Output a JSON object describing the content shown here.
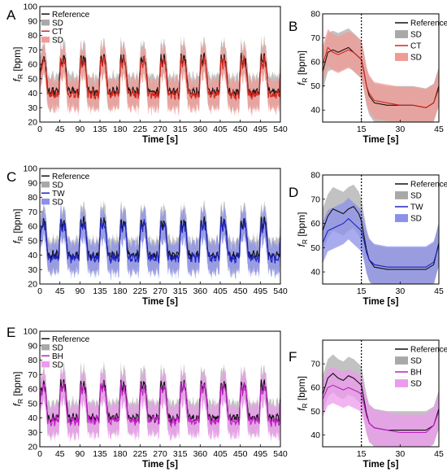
{
  "figure": {
    "background": "#ffffff"
  },
  "chart_data": [
    {
      "panel": "A",
      "type": "line",
      "xlabel": "Time [s]",
      "ylabel_main": "f",
      "ylabel_sub": "R",
      "ylabel_unit": " [bpm]",
      "xlim": [
        0,
        540
      ],
      "ylim": [
        20,
        100
      ],
      "xticks": [
        0,
        45,
        90,
        135,
        180,
        225,
        270,
        315,
        360,
        405,
        450,
        495,
        540
      ],
      "yticks": [
        20,
        30,
        40,
        50,
        60,
        70,
        80,
        90,
        100
      ],
      "kind": "full",
      "series_color": "#d4251c",
      "band_color": "#f29a94",
      "legend": [
        "Reference",
        "SD",
        "CT",
        "SD"
      ],
      "legend_placement": "top-left",
      "reference_pattern": {
        "cycle_s": 45,
        "high_bpm": 63,
        "low_bpm": 41,
        "cycles": 12
      }
    },
    {
      "panel": "B",
      "type": "line",
      "xlabel": "Time [s]",
      "ylabel_main": "f",
      "ylabel_sub": "R",
      "ylabel_unit": " [bpm]",
      "xlim": [
        0,
        45
      ],
      "ylim": [
        35,
        80
      ],
      "xticks": [
        15,
        30,
        45
      ],
      "yticks": [
        40,
        50,
        60,
        70,
        80
      ],
      "kind": "avg",
      "vline_x": 15,
      "series_color": "#d4251c",
      "band_color": "#f29a94",
      "legend": [
        "Reference",
        "SD",
        "CT",
        "SD"
      ],
      "legend_placement": "top-right",
      "reference_x": [
        0,
        2,
        4,
        6,
        8,
        10,
        12,
        14,
        15,
        16,
        17,
        18,
        20,
        25,
        30,
        35,
        40,
        43,
        45
      ],
      "reference_y": [
        56,
        64,
        65,
        64,
        65,
        66,
        64,
        62,
        61,
        56,
        50,
        46,
        43,
        42,
        42,
        42,
        41,
        43,
        50
      ],
      "method_x": [
        0,
        2,
        4,
        6,
        8,
        10,
        12,
        14,
        15,
        16,
        17,
        18,
        20,
        25,
        30,
        35,
        40,
        43,
        45
      ],
      "method_y": [
        59,
        66,
        64,
        63,
        64,
        65,
        64,
        62,
        61,
        56,
        50,
        47,
        44,
        43,
        42,
        42,
        41,
        43,
        49
      ],
      "band_half_width": 8
    },
    {
      "panel": "C",
      "type": "line",
      "xlabel": "Time [s]",
      "ylabel_main": "f",
      "ylabel_sub": "R",
      "ylabel_unit": " [bpm]",
      "xlim": [
        0,
        540
      ],
      "ylim": [
        20,
        100
      ],
      "xticks": [
        0,
        45,
        90,
        135,
        180,
        225,
        270,
        315,
        360,
        405,
        450,
        495,
        540
      ],
      "yticks": [
        20,
        30,
        40,
        50,
        60,
        70,
        80,
        90,
        100
      ],
      "kind": "full",
      "series_color": "#1d22c4",
      "band_color": "#8b90ea",
      "legend": [
        "Reference",
        "SD",
        "TW",
        "SD"
      ],
      "legend_placement": "top-left",
      "reference_pattern": {
        "cycle_s": 45,
        "high_bpm": 62,
        "low_bpm": 40,
        "cycles": 12
      }
    },
    {
      "panel": "D",
      "type": "line",
      "xlabel": "Time [s]",
      "ylabel_main": "f",
      "ylabel_sub": "R",
      "ylabel_unit": " [bpm]",
      "xlim": [
        0,
        45
      ],
      "ylim": [
        35,
        80
      ],
      "xticks": [
        15,
        30,
        45
      ],
      "yticks": [
        40,
        50,
        60,
        70,
        80
      ],
      "kind": "avg",
      "vline_x": 15,
      "series_color": "#1d22c4",
      "band_color": "#8b90ea",
      "legend": [
        "Reference",
        "SD",
        "TW",
        "SD"
      ],
      "legend_placement": "top-right",
      "reference_x": [
        0,
        2,
        4,
        6,
        8,
        10,
        12,
        14,
        15,
        16,
        17,
        18,
        20,
        25,
        30,
        35,
        40,
        43,
        45
      ],
      "reference_y": [
        57,
        63,
        66,
        65,
        64,
        66,
        67,
        64,
        61,
        55,
        49,
        45,
        42,
        41,
        41,
        41,
        41,
        43,
        52
      ],
      "method_x": [
        0,
        2,
        4,
        6,
        8,
        10,
        12,
        14,
        15,
        16,
        17,
        18,
        20,
        25,
        30,
        35,
        40,
        43,
        45
      ],
      "method_y": [
        52,
        57,
        58,
        59,
        60,
        62,
        60,
        58,
        57,
        53,
        48,
        45,
        43,
        42,
        42,
        42,
        42,
        44,
        51
      ],
      "band_half_width": 9
    },
    {
      "panel": "E",
      "type": "line",
      "xlabel": "Time [s]",
      "ylabel_main": "f",
      "ylabel_sub": "R",
      "ylabel_unit": " [bpm]",
      "xlim": [
        0,
        540
      ],
      "ylim": [
        20,
        100
      ],
      "xticks": [
        0,
        45,
        90,
        135,
        180,
        225,
        270,
        315,
        360,
        405,
        450,
        495,
        540
      ],
      "yticks": [
        20,
        30,
        40,
        50,
        60,
        70,
        80,
        90,
        100
      ],
      "kind": "full",
      "series_color": "#c01ec4",
      "band_color": "#ec99ee",
      "legend": [
        "Reference",
        "SD",
        "BH",
        "SD"
      ],
      "legend_placement": "top-left",
      "reference_pattern": {
        "cycle_s": 45,
        "high_bpm": 62,
        "low_bpm": 40,
        "cycles": 12
      }
    },
    {
      "panel": "F",
      "type": "line",
      "xlabel": "Time [s]",
      "ylabel_main": "f",
      "ylabel_sub": "R",
      "ylabel_unit": " [bpm]",
      "xlim": [
        0,
        45
      ],
      "ylim": [
        35,
        80
      ],
      "xticks": [
        15,
        30,
        45
      ],
      "yticks": [
        40,
        50,
        60,
        70
      ],
      "kind": "avg",
      "vline_x": 15,
      "series_color": "#c01ec4",
      "band_color": "#ec99ee",
      "legend": [
        "Reference",
        "SD",
        "BH",
        "SD"
      ],
      "legend_placement": "top-right",
      "reference_x": [
        0,
        2,
        4,
        6,
        8,
        10,
        12,
        14,
        15,
        16,
        17,
        18,
        20,
        25,
        30,
        35,
        40,
        43,
        45
      ],
      "reference_y": [
        57,
        64,
        66,
        64,
        63,
        65,
        64,
        62,
        61,
        55,
        49,
        45,
        43,
        42,
        42,
        42,
        42,
        44,
        51
      ],
      "method_x": [
        0,
        2,
        4,
        6,
        8,
        10,
        12,
        14,
        15,
        16,
        17,
        18,
        20,
        25,
        30,
        35,
        40,
        43,
        45
      ],
      "method_y": [
        55,
        60,
        61,
        60,
        59,
        60,
        59,
        58,
        57,
        53,
        48,
        45,
        43,
        42,
        41,
        41,
        41,
        44,
        50
      ],
      "band_half_width": 8
    }
  ]
}
